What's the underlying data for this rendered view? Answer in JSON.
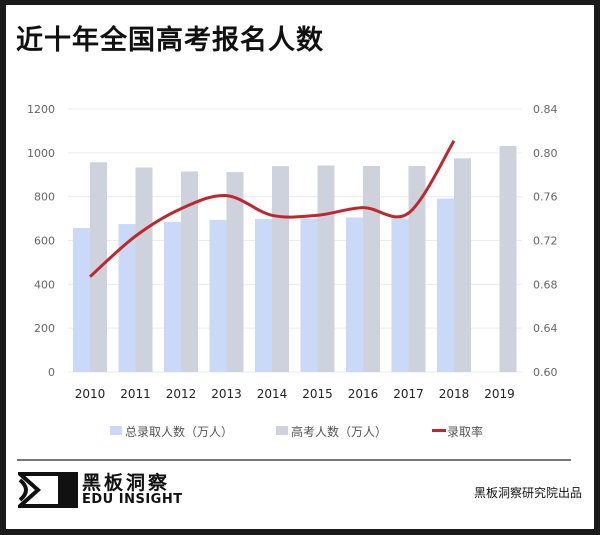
{
  "title": "近十年全国高考报名人数",
  "chart_data": {
    "type": "bar",
    "title": "近十年全国高考报名人数",
    "categories": [
      "2010",
      "2011",
      "2012",
      "2013",
      "2014",
      "2015",
      "2016",
      "2017",
      "2018",
      "2019"
    ],
    "series": [
      {
        "name": "总录取人数（万人）",
        "type": "bar",
        "axis": "left",
        "color": "#c9d9f7",
        "values": [
          657,
          675,
          685,
          694,
          698,
          700,
          705,
          700,
          791,
          null
        ]
      },
      {
        "name": "高考人数（万人）",
        "type": "bar",
        "axis": "left",
        "color": "#cdd2dd",
        "values": [
          957,
          933,
          915,
          912,
          939,
          942,
          940,
          940,
          975,
          1031
        ]
      },
      {
        "name": "录取率",
        "type": "line",
        "axis": "right",
        "color": "#c0262d",
        "values": [
          0.687,
          0.724,
          0.749,
          0.761,
          0.743,
          0.743,
          0.75,
          0.745,
          0.811,
          null
        ]
      }
    ],
    "ylim": [
      0,
      1200
    ],
    "yticks": [
      "0",
      "200",
      "400",
      "600",
      "800",
      "1000",
      "1200"
    ],
    "y2lim": [
      0.6,
      0.84
    ],
    "y2ticks": [
      "0.60",
      "0.64",
      "0.68",
      "0.72",
      "0.76",
      "0.80",
      "0.84"
    ],
    "grid": true,
    "legend": "bottom"
  },
  "footer": {
    "brand": "黑板洞察",
    "brand_en": "EDU INSIGHT",
    "credit": "黑板洞察研究院出品"
  }
}
